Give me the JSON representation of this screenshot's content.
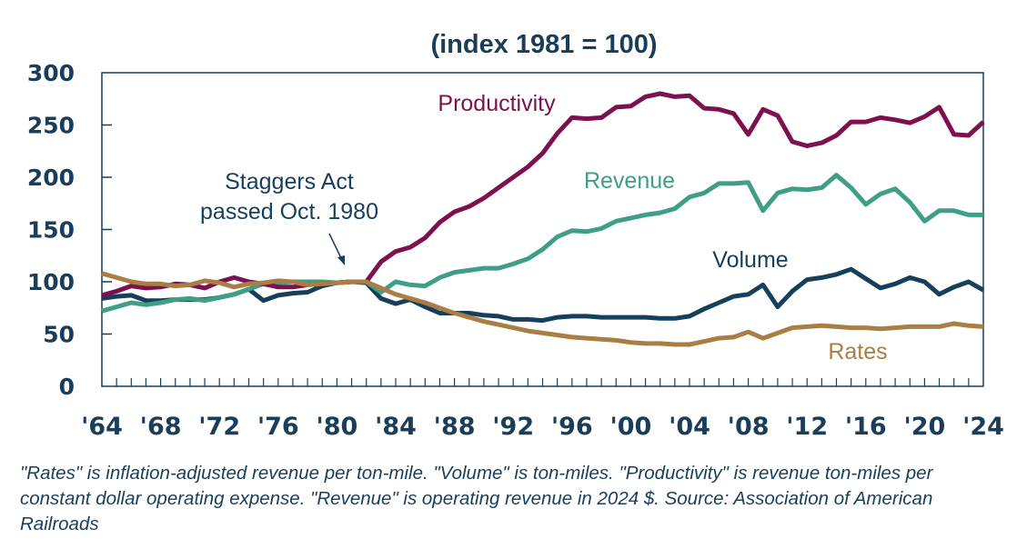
{
  "chart_data": {
    "type": "line",
    "title": "(index 1981 = 100)",
    "xlabel": "",
    "ylabel": "",
    "ylim": [
      0,
      300
    ],
    "xlim": [
      1964,
      2024
    ],
    "yticks": [
      0,
      50,
      100,
      150,
      200,
      250,
      300
    ],
    "ytick_labels": [
      "0",
      "50",
      "100",
      "150",
      "200",
      "250",
      "300"
    ],
    "xticks": [
      1964,
      1968,
      1972,
      1976,
      1980,
      1984,
      1988,
      1992,
      1996,
      2000,
      2004,
      2008,
      2012,
      2016,
      2020,
      2024
    ],
    "xtick_labels": [
      "'64",
      "'68",
      "'72",
      "'76",
      "'80",
      "'84",
      "'88",
      "'92",
      "'96",
      "'00",
      "'04",
      "'08",
      "'12",
      "'16",
      "'20",
      "'24"
    ],
    "grid": false,
    "legend": "inline labels",
    "x": [
      1964,
      1965,
      1966,
      1967,
      1968,
      1969,
      1970,
      1971,
      1972,
      1973,
      1974,
      1975,
      1976,
      1977,
      1978,
      1979,
      1980,
      1981,
      1982,
      1983,
      1984,
      1985,
      1986,
      1987,
      1988,
      1989,
      1990,
      1991,
      1992,
      1993,
      1994,
      1995,
      1996,
      1997,
      1998,
      1999,
      2000,
      2001,
      2002,
      2003,
      2004,
      2005,
      2006,
      2007,
      2008,
      2009,
      2010,
      2011,
      2012,
      2013,
      2014,
      2015,
      2016,
      2017,
      2018,
      2019,
      2020,
      2021,
      2022,
      2023,
      2024
    ],
    "series": [
      {
        "name": "Productivity",
        "color": "#7d1150",
        "values": [
          87,
          91,
          96,
          94,
          95,
          98,
          97,
          94,
          100,
          104,
          100,
          98,
          95,
          95,
          97,
          98,
          99,
          100,
          100,
          119,
          129,
          133,
          142,
          157,
          167,
          172,
          180,
          190,
          200,
          210,
          223,
          242,
          257,
          256,
          257,
          267,
          268,
          277,
          280,
          277,
          278,
          266,
          265,
          261,
          241,
          265,
          259,
          234,
          230,
          233,
          240,
          253,
          253,
          257,
          255,
          252,
          258,
          267,
          241,
          240,
          253
        ]
      },
      {
        "name": "Revenue",
        "color": "#3f9e86",
        "values": [
          72,
          76,
          80,
          78,
          80,
          83,
          84,
          82,
          85,
          88,
          93,
          98,
          99,
          100,
          100,
          100,
          99,
          100,
          100,
          90,
          100,
          97,
          96,
          104,
          109,
          111,
          113,
          113,
          117,
          122,
          131,
          143,
          149,
          148,
          151,
          158,
          161,
          164,
          166,
          170,
          181,
          185,
          194,
          194,
          195,
          168,
          185,
          189,
          188,
          190,
          202,
          190,
          174,
          184,
          189,
          176,
          158,
          168,
          168,
          164,
          164
        ]
      },
      {
        "name": "Volume",
        "color": "#163f5c",
        "values": [
          84,
          86,
          87,
          82,
          82,
          83,
          83,
          83,
          85,
          88,
          93,
          82,
          87,
          89,
          90,
          96,
          99,
          100,
          99,
          84,
          79,
          83,
          76,
          70,
          70,
          70,
          68,
          67,
          64,
          64,
          63,
          66,
          67,
          67,
          66,
          66,
          66,
          66,
          65,
          65,
          67,
          74,
          80,
          86,
          88,
          97,
          76,
          91,
          102,
          104,
          107,
          112,
          103,
          94,
          98,
          104,
          100,
          88,
          95,
          100,
          92
        ]
      },
      {
        "name": "Rates",
        "color": "#a97e45",
        "values": [
          108,
          104,
          100,
          98,
          98,
          96,
          97,
          101,
          99,
          95,
          98,
          99,
          101,
          100,
          97,
          98,
          99,
          100,
          100,
          94,
          88,
          84,
          80,
          75,
          70,
          66,
          62,
          59,
          56,
          53,
          51,
          49,
          47,
          46,
          45,
          44,
          42,
          41,
          41,
          40,
          40,
          43,
          46,
          47,
          52,
          46,
          51,
          56,
          57,
          58,
          57,
          56,
          56,
          55,
          56,
          57,
          57,
          57,
          60,
          58,
          57
        ]
      }
    ],
    "annotations": [
      {
        "text_lines": [
          "Staggers Act",
          "passed Oct. 1980"
        ],
        "points_to_year": 1981,
        "color": "#163f5c"
      }
    ],
    "series_labels": {
      "productivity": "Productivity",
      "revenue": "Revenue",
      "volume": "Volume",
      "rates": "Rates"
    }
  },
  "footnote": "\"Rates\" is inflation-adjusted revenue per ton-mile.  \"Volume\" is ton-miles.  \"Productivity\" is revenue ton-miles per constant dollar operating expense.  \"Revenue\" is operating revenue in 2024 $.   Source: Association of American Railroads",
  "colors": {
    "axis": "#163f5c",
    "text": "#1a3e5a"
  }
}
